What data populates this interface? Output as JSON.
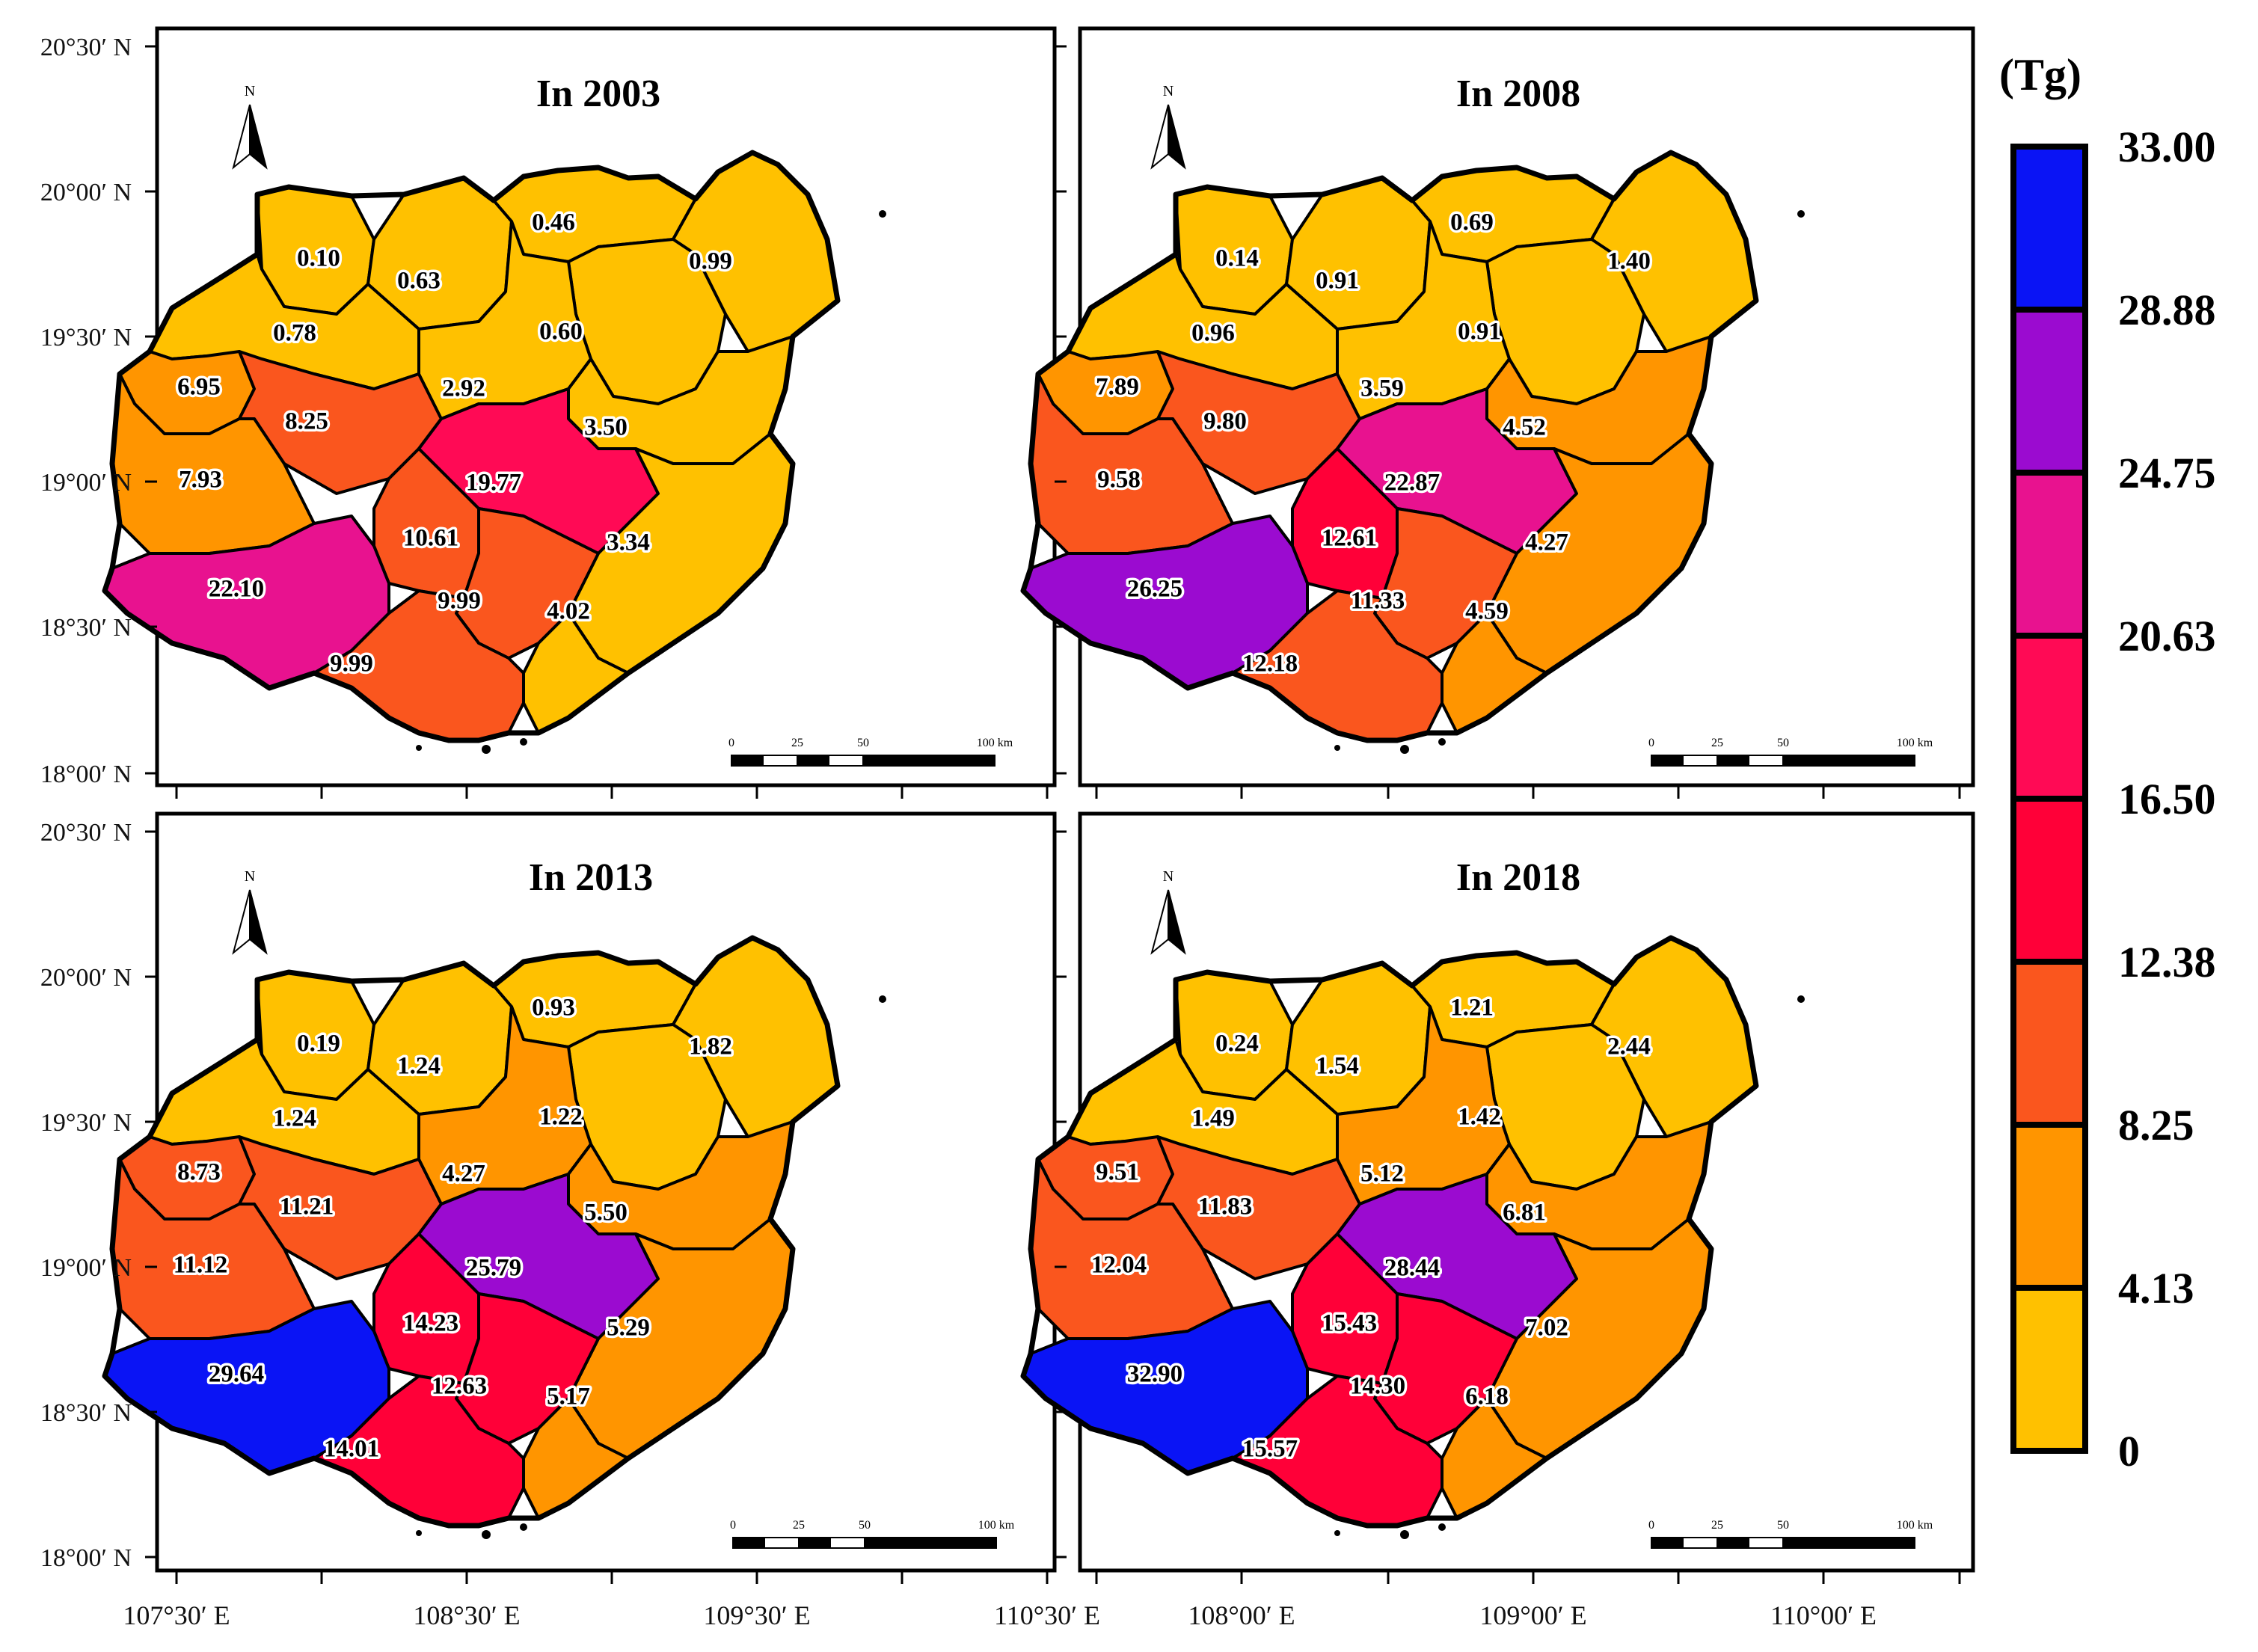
{
  "legend": {
    "unit": "(Tg)",
    "ticks": [
      "33.00",
      "28.88",
      "24.75",
      "20.63",
      "16.50",
      "12.38",
      "8.25",
      "4.13",
      "0"
    ],
    "colors": [
      "#0a14f5",
      "#9b0bd0",
      "#e8128f",
      "#ff0a55",
      "#ff0038",
      "#fa561e",
      "#ff9500",
      "#ffc100"
    ]
  },
  "latitude_labels": [
    "20°30′ N",
    "20°00′ N",
    "19°30′ N",
    "19°00′ N",
    "18°30′ N",
    "18°00′ N"
  ],
  "longitude_labels_left": [
    "107°30′ E",
    "108°30′ E",
    "109°30′ E",
    "110°30′ E"
  ],
  "longitude_labels_right": [
    "108°00′ E",
    "109°00′ E",
    "110°00′ E"
  ],
  "scale_bar": [
    "0",
    "25",
    "50",
    "100 km"
  ],
  "north_label": "N",
  "panels": [
    {
      "title": "In 2003",
      "values": [
        "0.10",
        "0.63",
        "0.46",
        "0.99",
        "0.78",
        "0.60",
        "6.95",
        "8.25",
        "2.92",
        "3.50",
        "7.93",
        "19.77",
        "10.61",
        "3.34",
        "22.10",
        "9.99",
        "4.02",
        "9.99"
      ]
    },
    {
      "title": "In 2008",
      "values": [
        "0.14",
        "0.91",
        "0.69",
        "1.40",
        "0.96",
        "0.91",
        "7.89",
        "9.80",
        "3.59",
        "4.52",
        "9.58",
        "22.87",
        "12.61",
        "4.27",
        "26.25",
        "11.33",
        "4.59",
        "12.18"
      ]
    },
    {
      "title": "In 2013",
      "values": [
        "0.19",
        "1.24",
        "0.93",
        "1.82",
        "1.24",
        "1.22",
        "8.73",
        "11.21",
        "4.27",
        "5.50",
        "11.12",
        "25.79",
        "14.23",
        "5.29",
        "29.64",
        "12.63",
        "5.17",
        "14.01"
      ]
    },
    {
      "title": "In 2018",
      "values": [
        "0.24",
        "1.54",
        "1.21",
        "2.44",
        "1.49",
        "1.42",
        "9.51",
        "11.83",
        "5.12",
        "6.81",
        "12.04",
        "28.44",
        "15.43",
        "7.02",
        "32.90",
        "14.30",
        "6.18",
        "15.57"
      ]
    }
  ]
}
